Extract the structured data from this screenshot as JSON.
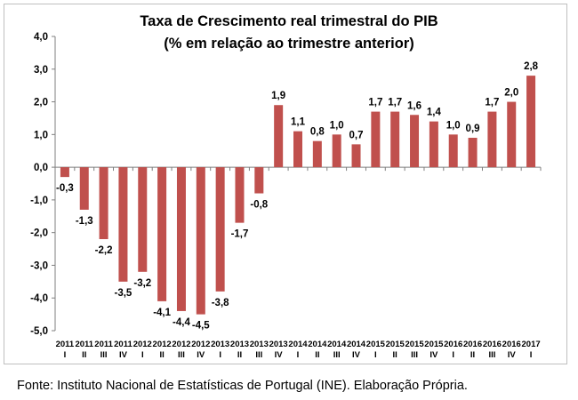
{
  "chart_data": {
    "type": "bar",
    "title": "Taxa de Crescimento real trimestral do PIB",
    "subtitle": "(% em relação ao trimestre anterior)",
    "categories": [
      [
        "2011",
        "I"
      ],
      [
        "2011",
        "II"
      ],
      [
        "2011",
        "III"
      ],
      [
        "2011",
        "IV"
      ],
      [
        "2012",
        "I"
      ],
      [
        "2012",
        "II"
      ],
      [
        "2012",
        "III"
      ],
      [
        "2012",
        "IV"
      ],
      [
        "2013",
        "I"
      ],
      [
        "2013",
        "II"
      ],
      [
        "2013",
        "III"
      ],
      [
        "2013",
        "IV"
      ],
      [
        "2014",
        "I"
      ],
      [
        "2014",
        "II"
      ],
      [
        "2014",
        "III"
      ],
      [
        "2014",
        "IV"
      ],
      [
        "2015",
        "I"
      ],
      [
        "2015",
        "II"
      ],
      [
        "2015",
        "III"
      ],
      [
        "2015",
        "IV"
      ],
      [
        "2016",
        "I"
      ],
      [
        "2016",
        "II"
      ],
      [
        "2016",
        "III"
      ],
      [
        "2016",
        "IV"
      ],
      [
        "2017",
        "I"
      ]
    ],
    "values": [
      -0.3,
      -1.3,
      -2.2,
      -3.5,
      -3.2,
      -4.1,
      -4.4,
      -4.5,
      -3.8,
      -1.7,
      -0.8,
      1.9,
      1.1,
      0.8,
      1.0,
      0.7,
      1.7,
      1.7,
      1.6,
      1.4,
      1.0,
      0.9,
      1.7,
      2.0,
      2.8
    ],
    "data_labels": [
      "-0,3",
      "-1,3",
      "-2,2",
      "-3,5",
      "-3,2",
      "-4,1",
      "-4,4",
      "-4,5",
      "-3,8",
      "-1,7",
      "-0,8",
      "1,9",
      "1,1",
      "0,8",
      "1,0",
      "0,7",
      "1,7",
      "1,7",
      "1,6",
      "1,4",
      "1,0",
      "0,9",
      "1,7",
      "2,0",
      "2,8"
    ],
    "yticks": [
      4.0,
      3.0,
      2.0,
      1.0,
      0.0,
      -1.0,
      -2.0,
      -3.0,
      -4.0,
      -5.0
    ],
    "ytick_labels": [
      "4,0",
      "3,0",
      "2,0",
      "1,0",
      "0,0",
      "-1,0",
      "-2,0",
      "-3,0",
      "-4,0",
      "-5,0"
    ],
    "ylim": [
      -5.0,
      4.0
    ],
    "xlabel": "",
    "ylabel": "",
    "grid": false,
    "bar_color": "#c0504d"
  },
  "source_note": "Fonte: Instituto Nacional de Estatísticas de Portugal (INE). Elaboração Própria."
}
